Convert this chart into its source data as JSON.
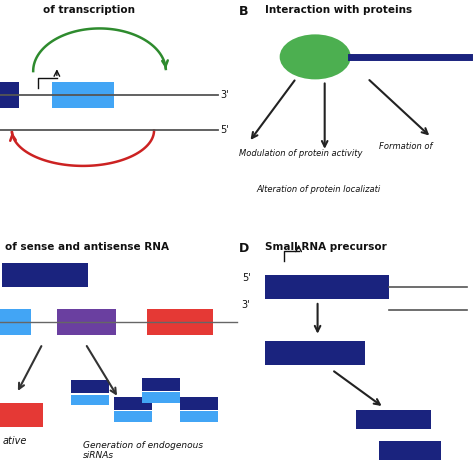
{
  "bg_color": "#ffffff",
  "panel_A": {
    "title": "of transcription",
    "green_color": "#2e8b2e",
    "red_color": "#cc2222",
    "dark_blue": "#1a237e",
    "light_blue": "#42a5f5",
    "line_color": "#555555"
  },
  "panel_B": {
    "label": "B",
    "title": "Interaction with proteins",
    "ellipse_color": "#4caf50",
    "line_color": "#1a237e",
    "arrow_color": "#222222",
    "text1": "Modulation of protein activity",
    "text2": "Formation of",
    "text3": "Alteration of protein localizati"
  },
  "panel_C": {
    "title": "of sense and antisense RNA",
    "dark_blue": "#1a237e",
    "light_blue": "#42a5f5",
    "purple": "#6a3fa0",
    "red": "#e53935",
    "text1": "ative",
    "text2": "Generation of endogenous\nsiRNAs"
  },
  "panel_D": {
    "label": "D",
    "title": "Small RNA precursor",
    "dark_blue": "#1a237e",
    "line_color": "#555555",
    "arrow_color": "#222222",
    "label_5": "5'",
    "label_3": "3'"
  }
}
